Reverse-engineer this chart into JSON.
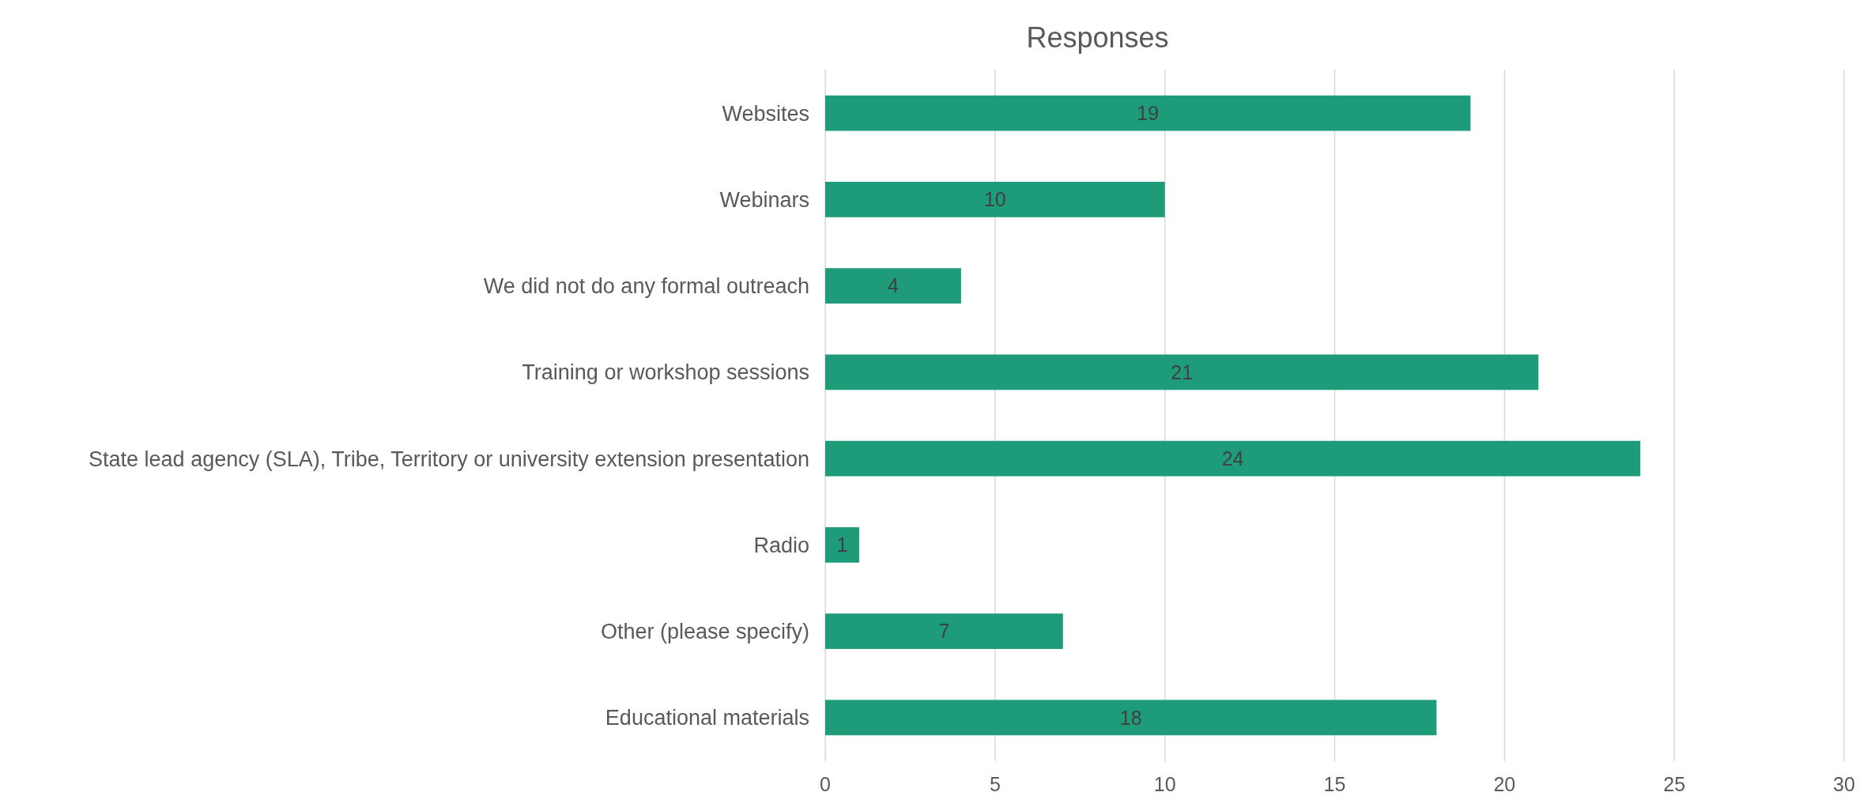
{
  "chart_data": {
    "type": "bar",
    "orientation": "horizontal",
    "title": "Responses",
    "categories": [
      "Websites",
      "Webinars",
      "We did not do any formal outreach",
      "Training or workshop sessions",
      "State lead agency (SLA), Tribe, Territory or university extension presentation",
      "Radio",
      "Other (please specify)",
      "Educational materials"
    ],
    "values": [
      19,
      10,
      4,
      21,
      24,
      1,
      7,
      18
    ],
    "color": "#1e9c7a",
    "xlim": [
      0,
      30
    ],
    "xticks": [
      0,
      5,
      10,
      15,
      20,
      25,
      30
    ],
    "grid": "x",
    "data_labels": true
  }
}
